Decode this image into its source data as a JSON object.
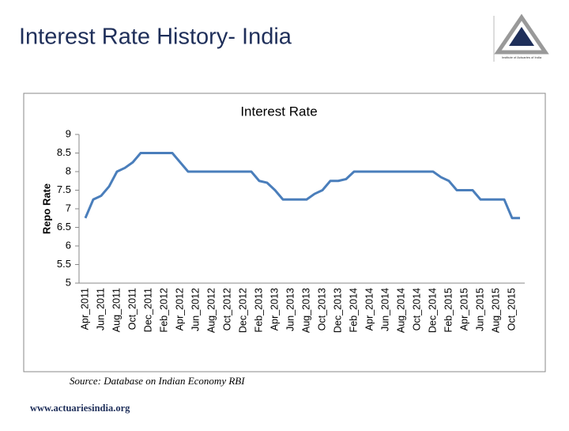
{
  "header": {
    "title": "Interest Rate History- India"
  },
  "logo": {
    "text": "Institute of Actuaries of India"
  },
  "chart_data": {
    "type": "line",
    "title": "Interest Rate",
    "ylabel": "Repo Rate",
    "categories": [
      "Apr_2011",
      null,
      "Jun_2011",
      null,
      "Aug_2011",
      null,
      "Oct_2011",
      null,
      "Dec_2011",
      null,
      "Feb_2012",
      null,
      "Apr_2012",
      null,
      "Jun_2012",
      null,
      "Aug_2012",
      null,
      "Oct_2012",
      null,
      "Dec_2012",
      null,
      "Feb_2013",
      null,
      "Apr_2013",
      null,
      "Jun_2013",
      null,
      "Aug_2013",
      null,
      "Oct_2013",
      null,
      "Dec_2013",
      null,
      "Feb_2014",
      null,
      "Apr_2014",
      null,
      "Jun_2014",
      null,
      "Aug_2014",
      null,
      "Oct_2014",
      null,
      "Dec_2014",
      null,
      "Feb_2015",
      null,
      "Apr_2015",
      null,
      "Jun_2015",
      null,
      "Aug_2015",
      null,
      "Oct_2015",
      null
    ],
    "series": [
      {
        "name": "Repo Rate",
        "color": "#4a7ebb",
        "values": [
          6.75,
          7.25,
          7.35,
          7.6,
          8.0,
          8.1,
          8.25,
          8.5,
          8.5,
          8.5,
          8.5,
          8.5,
          8.25,
          8.0,
          8.0,
          8.0,
          8.0,
          8.0,
          8.0,
          8.0,
          8.0,
          8.0,
          7.75,
          7.7,
          7.5,
          7.25,
          7.25,
          7.25,
          7.25,
          7.4,
          7.5,
          7.75,
          7.75,
          7.8,
          8.0,
          8.0,
          8.0,
          8.0,
          8.0,
          8.0,
          8.0,
          8.0,
          8.0,
          8.0,
          8.0,
          7.85,
          7.75,
          7.5,
          7.5,
          7.5,
          7.25,
          7.25,
          7.25,
          7.25,
          6.75,
          6.75
        ]
      }
    ],
    "ylim": [
      5,
      9
    ],
    "yticks": [
      5,
      5.5,
      6,
      6.5,
      7,
      7.5,
      8,
      8.5,
      9
    ],
    "grid": false
  },
  "footer": {
    "source": "Source: Database on Indian Economy RBI",
    "url": "www.actuariesindia.org"
  }
}
